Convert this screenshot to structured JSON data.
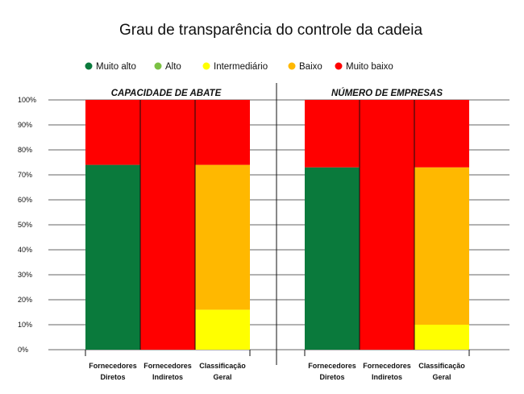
{
  "chart_data": {
    "type": "bar",
    "stacked": true,
    "title": "Grau de transparência do controle da cadeia",
    "legend": {
      "placement": "top",
      "items": [
        {
          "label": "Muito alto",
          "color": "#0a7a3c"
        },
        {
          "label": "Alto",
          "color": "#7bc143"
        },
        {
          "label": "Intermediário",
          "color": "#ffff00"
        },
        {
          "label": "Baixo",
          "color": "#ffb800"
        },
        {
          "label": "Muito baixo",
          "color": "#ff0000"
        }
      ]
    },
    "y_ticks": [
      "0%",
      "10%",
      "20%",
      "30%",
      "40%",
      "50%",
      "60%",
      "70%",
      "80%",
      "90%",
      "100%"
    ],
    "ylim": [
      0,
      100
    ],
    "grid": true,
    "panels": [
      {
        "title": "CAPACIDADE DE ABATE",
        "categories": [
          {
            "line1": "Fornecedores",
            "line2": "Diretos"
          },
          {
            "line1": "Fornecedores",
            "line2": "Indiretos"
          },
          {
            "line1": "Classificação",
            "line2": "Geral"
          }
        ],
        "series": [
          {
            "name": "Muito alto",
            "values": [
              74,
              0,
              0
            ]
          },
          {
            "name": "Alto",
            "values": [
              0,
              0,
              0
            ]
          },
          {
            "name": "Intermediário",
            "values": [
              0,
              0,
              16
            ]
          },
          {
            "name": "Baixo",
            "values": [
              0,
              0,
              58
            ]
          },
          {
            "name": "Muito baixo",
            "values": [
              26,
              100,
              26
            ]
          }
        ]
      },
      {
        "title": "NÚMERO DE EMPRESAS",
        "categories": [
          {
            "line1": "Fornecedores",
            "line2": "Diretos"
          },
          {
            "line1": "Fornecedores",
            "line2": "Indiretos"
          },
          {
            "line1": "Classificação",
            "line2": "Geral"
          }
        ],
        "series": [
          {
            "name": "Muito alto",
            "values": [
              73,
              0,
              0
            ]
          },
          {
            "name": "Alto",
            "values": [
              0,
              0,
              0
            ]
          },
          {
            "name": "Intermediário",
            "values": [
              0,
              0,
              10
            ]
          },
          {
            "name": "Baixo",
            "values": [
              0,
              0,
              63
            ]
          },
          {
            "name": "Muito baixo",
            "values": [
              27,
              100,
              27
            ]
          }
        ]
      }
    ]
  }
}
